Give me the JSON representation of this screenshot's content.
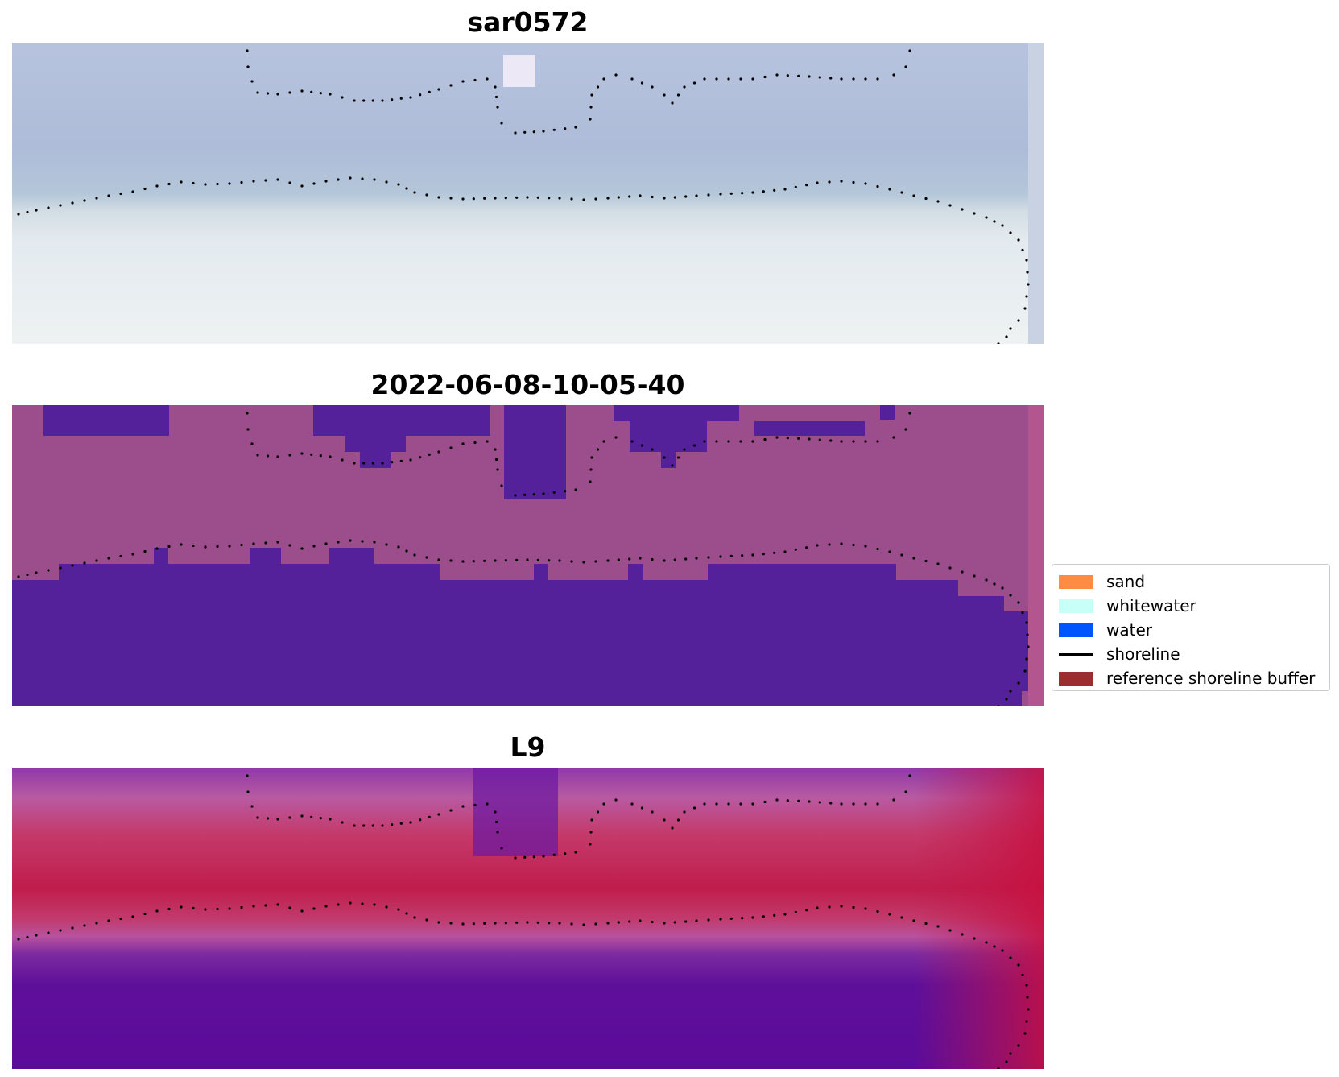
{
  "panels": [
    {
      "title": "sar0572",
      "kind": "rgb"
    },
    {
      "title": "2022-06-08-10-05-40",
      "kind": "classified"
    },
    {
      "title": "L9",
      "kind": "index"
    }
  ],
  "legend": {
    "items": [
      {
        "label": "sand",
        "color": "#ff8c42",
        "type": "patch"
      },
      {
        "label": "whitewater",
        "color": "#c8fff7",
        "type": "patch"
      },
      {
        "label": "water",
        "color": "#0055ff",
        "type": "patch"
      },
      {
        "label": "shoreline",
        "color": "#000000",
        "type": "line"
      },
      {
        "label": "reference shoreline buffer",
        "color": "#9b2d30",
        "type": "patch"
      }
    ]
  },
  "colors": {
    "rgb_water": "#b6c3de",
    "rgb_beach": "#e6ecef",
    "class_buffer": "#9c4d8c",
    "class_water": "#54219a",
    "index_high": "#c0174a",
    "index_mid": "#b8529e",
    "index_low": "#5b0b99"
  }
}
